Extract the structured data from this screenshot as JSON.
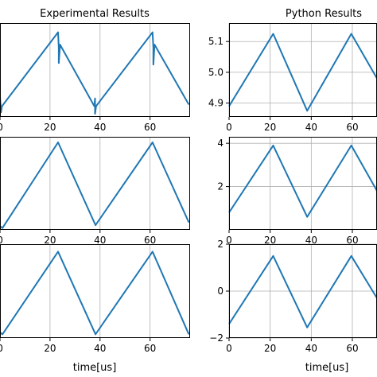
{
  "chart_data": [
    {
      "type": "line",
      "title": "Experimental Results",
      "xlabel": "",
      "xlim": [
        0,
        76
      ],
      "ylim": [
        4.855,
        5.16
      ],
      "xticks": [
        0,
        20,
        40,
        60
      ],
      "yticks": [],
      "grid": true,
      "color": "#1f77b4",
      "series": [
        {
          "x": [
            0,
            0.4,
            0.8,
            23.2,
            23.5,
            23.5,
            24,
            37.7,
            38,
            38,
            38.4,
            61,
            61.3,
            61.3,
            61.8,
            75.5
          ],
          "y": [
            4.92,
            4.87,
            4.89,
            5.13,
            5.08,
            5.03,
            5.09,
            4.89,
            4.915,
            4.865,
            4.89,
            5.13,
            5.08,
            5.025,
            5.09,
            4.895
          ]
        }
      ]
    },
    {
      "type": "line",
      "title": "Python Results",
      "xlabel": "",
      "xlim": [
        0,
        72
      ],
      "ylim": [
        4.855,
        5.16
      ],
      "xticks": [
        0,
        20,
        40,
        60
      ],
      "yticks": [
        4.9,
        5.0,
        5.1
      ],
      "ytick_labels": [
        "4.9",
        "5.0",
        "5.1"
      ],
      "grid": true,
      "color": "#1f77b4",
      "series": [
        {
          "x": [
            0,
            21.5,
            38,
            59.5,
            72
          ],
          "y": [
            4.89,
            5.125,
            4.875,
            5.125,
            4.98
          ]
        }
      ]
    },
    {
      "type": "line",
      "title": "",
      "xlabel": "",
      "xlim": [
        0,
        76
      ],
      "ylim": [
        0,
        100
      ],
      "xticks": [
        0,
        20,
        40,
        60
      ],
      "yticks": [],
      "grid": true,
      "color": "#1f77b4",
      "series": [
        {
          "x": [
            0,
            1,
            23.2,
            38.2,
            61,
            75.5
          ],
          "y": [
            4,
            2,
            94,
            5,
            94,
            8
          ]
        }
      ]
    },
    {
      "type": "line",
      "title": "",
      "xlabel": "",
      "xlim": [
        0,
        72
      ],
      "ylim": [
        0,
        4.3
      ],
      "xticks": [
        0,
        20,
        40,
        60
      ],
      "yticks": [
        2,
        4
      ],
      "ytick_labels": [
        "2",
        "4"
      ],
      "grid": true,
      "color": "#1f77b4",
      "series": [
        {
          "x": [
            0,
            21.5,
            38,
            59.5,
            72
          ],
          "y": [
            0.8,
            3.9,
            0.6,
            3.9,
            1.8
          ]
        }
      ]
    },
    {
      "type": "line",
      "title": "",
      "xlabel": "time[us]",
      "xlim": [
        0,
        76
      ],
      "ylim": [
        0,
        100
      ],
      "xticks": [
        0,
        20,
        40,
        60
      ],
      "yticks": [],
      "grid": true,
      "color": "#1f77b4",
      "series": [
        {
          "x": [
            0,
            1,
            23.2,
            38.2,
            61,
            75.5
          ],
          "y": [
            6,
            4,
            92,
            4,
            92,
            4
          ]
        }
      ]
    },
    {
      "type": "line",
      "title": "",
      "xlabel": "time[us]",
      "xlim": [
        0,
        72
      ],
      "ylim": [
        -2,
        2
      ],
      "xticks": [
        0,
        20,
        40,
        60
      ],
      "yticks": [
        -2,
        0,
        2
      ],
      "ytick_labels": [
        "−2",
        "0",
        "2"
      ],
      "grid": true,
      "color": "#1f77b4",
      "series": [
        {
          "x": [
            0,
            21.5,
            38,
            59.5,
            72
          ],
          "y": [
            -1.4,
            1.5,
            -1.55,
            1.5,
            -0.3
          ]
        }
      ]
    }
  ]
}
